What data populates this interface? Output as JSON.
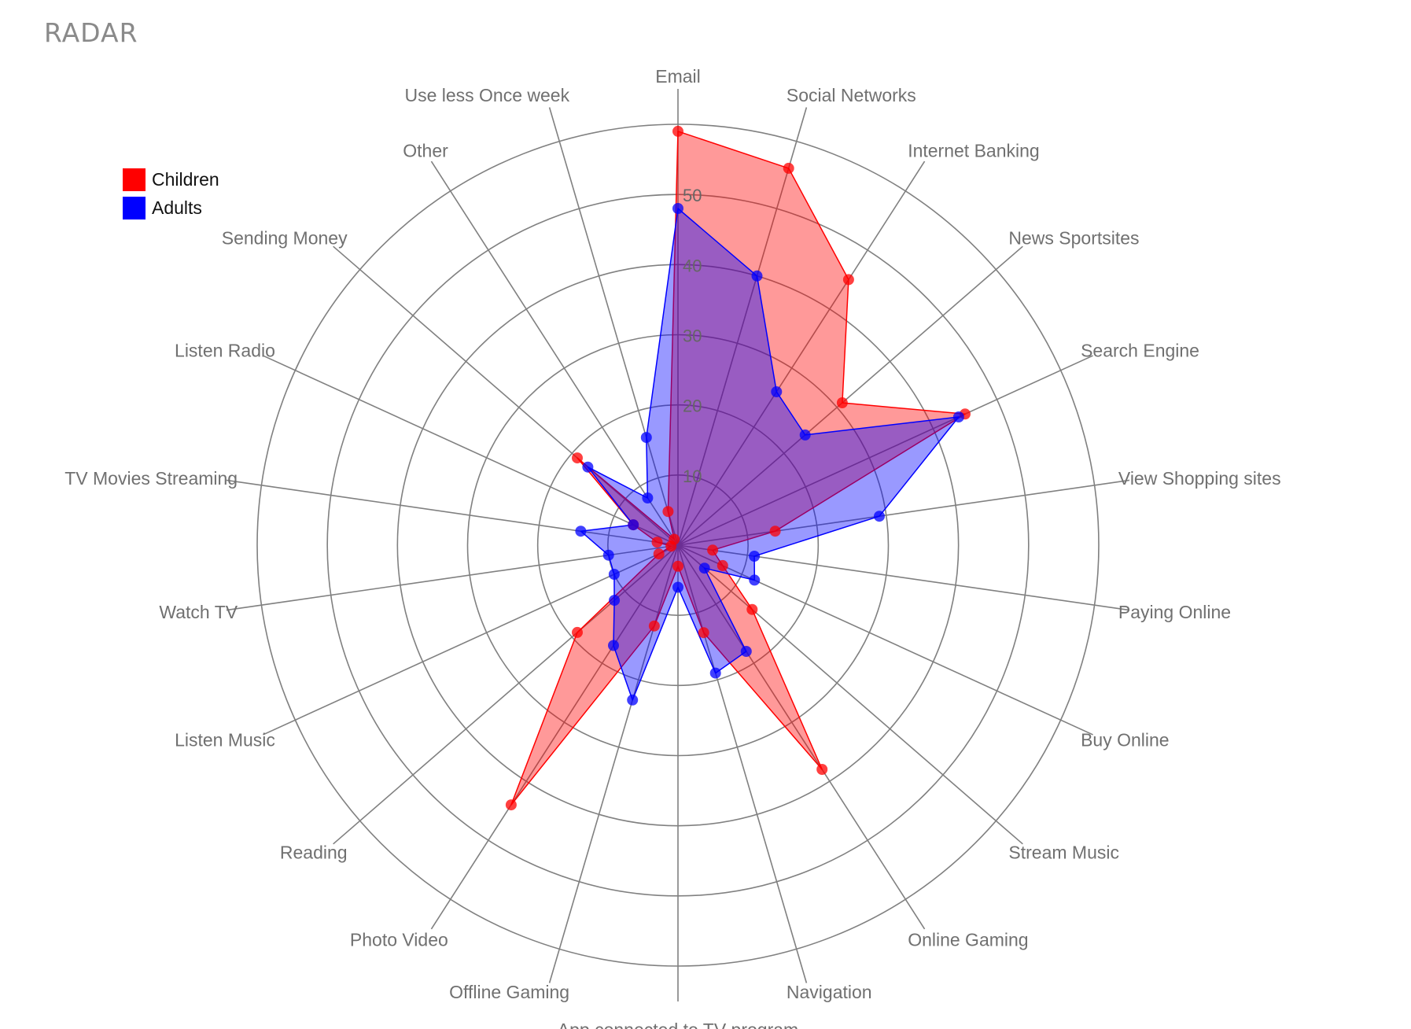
{
  "title": "RADAR",
  "chart_data": {
    "type": "radar",
    "axes": [
      "Email",
      "Social Networks",
      "Internet Banking",
      "News Sportsites",
      "Search Engine",
      "View Shopping sites",
      "Paying Online",
      "Buy Online",
      "Stream Music",
      "Online Gaming",
      "Navigation",
      "App connected to TV program",
      "Offline Gaming",
      "Photo Video",
      "Reading",
      "Listen Music",
      "Watch TV",
      "TV Movies Streaming",
      "Listen Radio",
      "Sending Money",
      "Other",
      "Use less Once week"
    ],
    "rlim": [
      0,
      60
    ],
    "r_ticks": [
      10,
      20,
      30,
      40,
      50
    ],
    "series": [
      {
        "name": "Children",
        "color": "#ff0000",
        "fill": "rgba(255,0,0,0.4)",
        "values": [
          59,
          56,
          45,
          31,
          45,
          14,
          5,
          7,
          14,
          38,
          13,
          3,
          12,
          44,
          19,
          3,
          1,
          3,
          7,
          19,
          1,
          5
        ]
      },
      {
        "name": "Adults",
        "color": "#0000ff",
        "fill": "rgba(0,0,255,0.4)",
        "values": [
          48,
          40,
          26,
          24,
          44,
          29,
          11,
          12,
          5,
          18,
          19,
          6,
          23,
          17,
          12,
          10,
          10,
          14,
          7,
          17,
          8,
          16
        ]
      }
    ],
    "legend": "top-left",
    "grid": true
  }
}
